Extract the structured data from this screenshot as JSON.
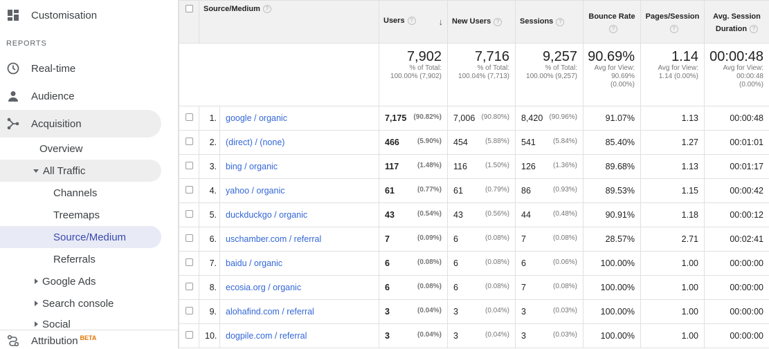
{
  "sidebar": {
    "customisation": "Customisation",
    "reports_label": "REPORTS",
    "realtime": "Real-time",
    "audience": "Audience",
    "acquisition": "Acquisition",
    "overview": "Overview",
    "all_traffic": "All Traffic",
    "channels": "Channels",
    "treemaps": "Treemaps",
    "source_medium": "Source/Medium",
    "referrals": "Referrals",
    "google_ads": "Google Ads",
    "search_console": "Search console",
    "social": "Social",
    "attribution": "Attribution",
    "beta": "BETA"
  },
  "table": {
    "headers": {
      "source_medium": "Source/Medium",
      "users": "Users",
      "new_users": "New Users",
      "sessions": "Sessions",
      "bounce_rate": "Bounce Rate",
      "pages_session": "Pages/Session",
      "avg_session_duration": "Avg. Session Duration",
      "help": "?",
      "sort_arrow": "↓"
    },
    "totals": {
      "users": {
        "value": "7,902",
        "l1": "% of Total:",
        "l2": "100.00% (7,902)"
      },
      "new_users": {
        "value": "7,716",
        "l1": "% of Total:",
        "l2": "100.04% (7,713)"
      },
      "sessions": {
        "value": "9,257",
        "l1": "% of Total:",
        "l2": "100.00% (9,257)"
      },
      "bounce_rate": {
        "value": "90.69%",
        "l1": "Avg for View:",
        "l2": "90.69%",
        "l3": "(0.00%)"
      },
      "pages_session": {
        "value": "1.14",
        "l1": "Avg for View:",
        "l2": "1.14 (0.00%)"
      },
      "avg_duration": {
        "value": "00:00:48",
        "l1": "Avg for View:",
        "l2": "00:00:48",
        "l3": "(0.00%)"
      }
    },
    "rows": [
      {
        "idx": "1.",
        "source": "google / organic",
        "users": "7,175",
        "users_pct": "(90.82%)",
        "new_users": "7,006",
        "new_pct": "(90.80%)",
        "sessions": "8,420",
        "sess_pct": "(90.96%)",
        "bounce": "91.07%",
        "pages": "1.13",
        "duration": "00:00:48"
      },
      {
        "idx": "2.",
        "source": "(direct) / (none)",
        "users": "466",
        "users_pct": "(5.90%)",
        "new_users": "454",
        "new_pct": "(5.88%)",
        "sessions": "541",
        "sess_pct": "(5.84%)",
        "bounce": "85.40%",
        "pages": "1.27",
        "duration": "00:01:01"
      },
      {
        "idx": "3.",
        "source": "bing / organic",
        "users": "117",
        "users_pct": "(1.48%)",
        "new_users": "116",
        "new_pct": "(1.50%)",
        "sessions": "126",
        "sess_pct": "(1.36%)",
        "bounce": "89.68%",
        "pages": "1.13",
        "duration": "00:01:17"
      },
      {
        "idx": "4.",
        "source": "yahoo / organic",
        "users": "61",
        "users_pct": "(0.77%)",
        "new_users": "61",
        "new_pct": "(0.79%)",
        "sessions": "86",
        "sess_pct": "(0.93%)",
        "bounce": "89.53%",
        "pages": "1.15",
        "duration": "00:00:42"
      },
      {
        "idx": "5.",
        "source": "duckduckgo / organic",
        "users": "43",
        "users_pct": "(0.54%)",
        "new_users": "43",
        "new_pct": "(0.56%)",
        "sessions": "44",
        "sess_pct": "(0.48%)",
        "bounce": "90.91%",
        "pages": "1.18",
        "duration": "00:00:12"
      },
      {
        "idx": "6.",
        "source": "uschamber.com / referral",
        "users": "7",
        "users_pct": "(0.09%)",
        "new_users": "6",
        "new_pct": "(0.08%)",
        "sessions": "7",
        "sess_pct": "(0.08%)",
        "bounce": "28.57%",
        "pages": "2.71",
        "duration": "00:02:41"
      },
      {
        "idx": "7.",
        "source": "baidu / organic",
        "users": "6",
        "users_pct": "(0.08%)",
        "new_users": "6",
        "new_pct": "(0.08%)",
        "sessions": "6",
        "sess_pct": "(0.06%)",
        "bounce": "100.00%",
        "pages": "1.00",
        "duration": "00:00:00"
      },
      {
        "idx": "8.",
        "source": "ecosia.org / organic",
        "users": "6",
        "users_pct": "(0.08%)",
        "new_users": "6",
        "new_pct": "(0.08%)",
        "sessions": "7",
        "sess_pct": "(0.08%)",
        "bounce": "100.00%",
        "pages": "1.00",
        "duration": "00:00:00"
      },
      {
        "idx": "9.",
        "source": "alohafind.com / referral",
        "users": "3",
        "users_pct": "(0.04%)",
        "new_users": "3",
        "new_pct": "(0.04%)",
        "sessions": "3",
        "sess_pct": "(0.03%)",
        "bounce": "100.00%",
        "pages": "1.00",
        "duration": "00:00:00"
      },
      {
        "idx": "10.",
        "source": "dogpile.com / referral",
        "users": "3",
        "users_pct": "(0.04%)",
        "new_users": "3",
        "new_pct": "(0.04%)",
        "sessions": "3",
        "sess_pct": "(0.03%)",
        "bounce": "100.00%",
        "pages": "1.00",
        "duration": "00:00:00"
      }
    ]
  }
}
